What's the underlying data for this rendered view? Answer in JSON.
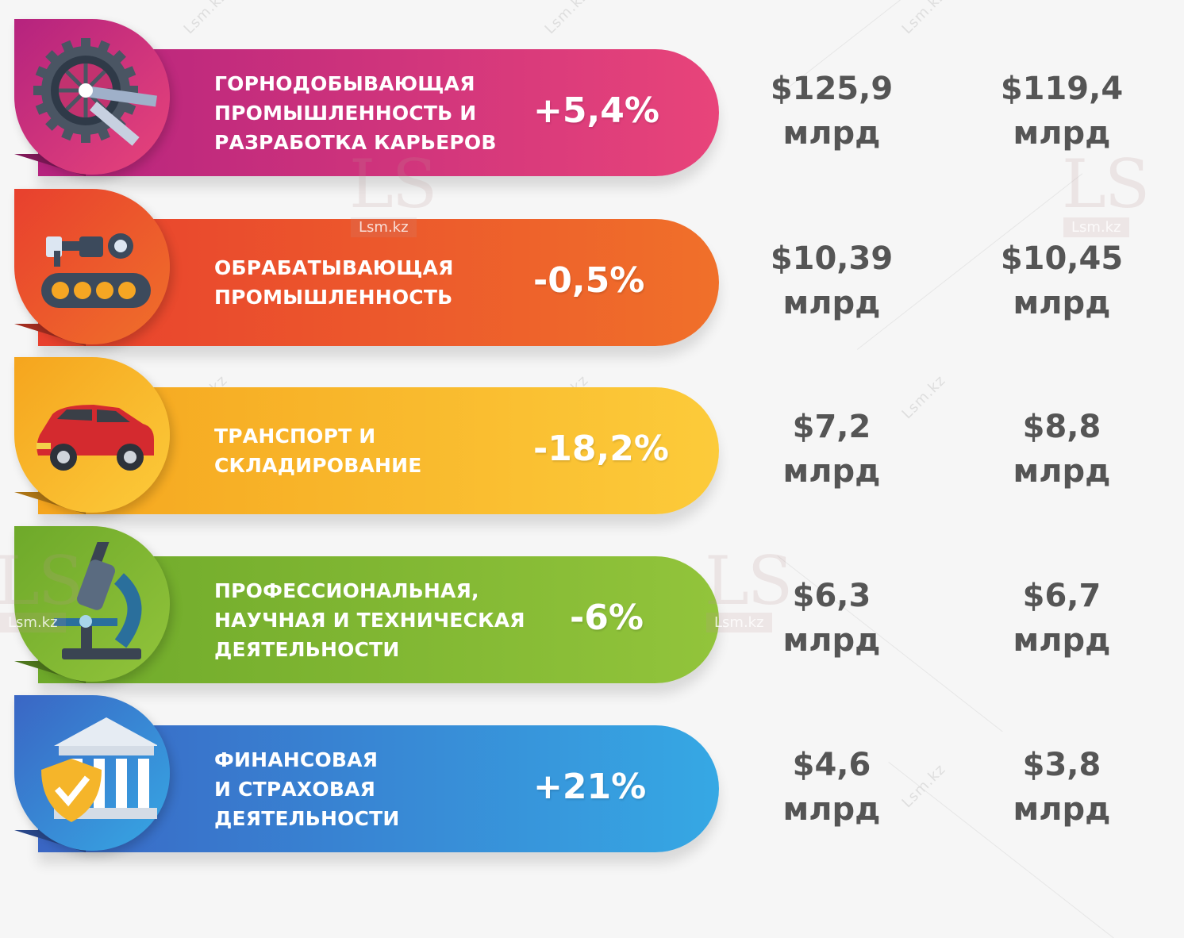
{
  "chart_data": {
    "type": "table",
    "rows": [
      {
        "label": "ГОРНОДОБЫВАЮЩАЯ\nПРОМЫШЛЕННОСТЬ И\nРАЗРАБОТКА КАРЬЕРОВ",
        "change": "+5,4%",
        "value_1": "$125,9",
        "value_2": "$119,4",
        "unit": "млрд",
        "color_from": "#b5237e",
        "color_to": "#e8447a",
        "icon": "bucket-wheel-excavator-icon"
      },
      {
        "label": "ОБРАБАТЫВАЮЩАЯ\nПРОМЫШЛЕННОСТЬ",
        "change": "-0,5%",
        "value_1": "$10,39",
        "value_2": "$10,45",
        "unit": "млрд",
        "color_from": "#e8402e",
        "color_to": "#f0702a",
        "icon": "conveyor-robot-arm-icon"
      },
      {
        "label": "ТРАНСПОРТ И\nСКЛАДИРОВАНИЕ",
        "change": "-18,2%",
        "value_1": "$7,2",
        "value_2": "$8,8",
        "unit": "млрд",
        "color_from": "#f5a51e",
        "color_to": "#fccb3a",
        "icon": "car-icon"
      },
      {
        "label": "ПРОФЕССИОНАЛЬНАЯ,\nНАУЧНАЯ И ТЕХНИЧЕСКАЯ\nДЕЯТЕЛЬНОСТИ",
        "change": "-6%",
        "value_1": "$6,3",
        "value_2": "$6,7",
        "unit": "млрд",
        "color_from": "#6ea92a",
        "color_to": "#92c43b",
        "icon": "microscope-icon"
      },
      {
        "label": "ФИНАНСОВАЯ\nИ СТРАХОВАЯ\nДЕЯТЕЛЬНОСТИ",
        "change": "+21%",
        "value_1": "$4,6",
        "value_2": "$3,8",
        "unit": "млрд",
        "color_from": "#3a66c4",
        "color_to": "#36a8e4",
        "icon": "bank-shield-icon"
      }
    ]
  },
  "watermark": {
    "small": "Lsm.kz",
    "logo": "LS",
    "logo_sub": "Lsm.kz"
  }
}
